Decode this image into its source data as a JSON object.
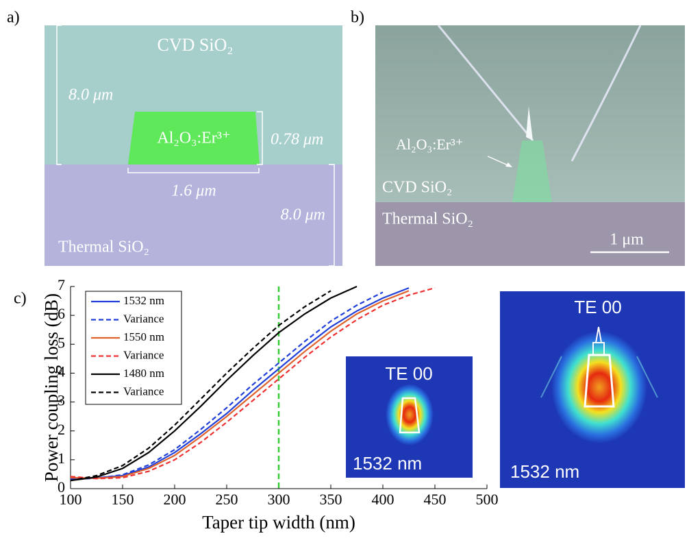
{
  "panel_labels": [
    "a)",
    "b)",
    "c)"
  ],
  "panel_a": {
    "top_layer": "CVD SiO₂",
    "top_thickness": "8.0 μm",
    "core": "Al₂O₃:Er³⁺",
    "core_height": "0.78 μm",
    "core_width": "1.6 μm",
    "bottom_thickness": "8.0 μm",
    "bottom_layer": "Thermal SiO₂"
  },
  "panel_b": {
    "core": "Al₂O₃:Er³⁺",
    "top_layer": "CVD SiO₂",
    "bottom_layer": "Thermal SiO₂",
    "scale_bar": "1 μm"
  },
  "insets": [
    {
      "title": "TE 00",
      "label": "1532 nm"
    },
    {
      "title": "TE 00",
      "label": "1532 nm"
    }
  ],
  "chart_data": {
    "type": "line",
    "xlabel": "Taper tip width (nm)",
    "ylabel": "Power coupling loss (dB)",
    "x": [
      100,
      125,
      150,
      175,
      200,
      225,
      250,
      275,
      300,
      325,
      350,
      375,
      400,
      425,
      450
    ],
    "xlim": [
      100,
      500
    ],
    "xticks": [
      100,
      150,
      200,
      250,
      300,
      350,
      400,
      450,
      500
    ],
    "ylim": [
      0,
      7
    ],
    "yticks": [
      0,
      1,
      2,
      3,
      4,
      5,
      6,
      7
    ],
    "vline": {
      "x": 300,
      "color": "#33cc33"
    },
    "series": [
      {
        "name": "1532 nm",
        "color": "#1f3fd8",
        "dashed": false,
        "values": [
          0.35,
          0.37,
          0.45,
          0.75,
          1.25,
          1.9,
          2.6,
          3.4,
          4.15,
          4.9,
          5.6,
          6.15,
          6.6,
          6.95,
          null
        ]
      },
      {
        "name": "Variance",
        "color": "#1f3fd8",
        "dashed": true,
        "values": [
          0.33,
          0.36,
          0.48,
          0.82,
          1.35,
          2.05,
          2.8,
          3.6,
          4.35,
          5.1,
          5.8,
          6.35,
          6.8,
          null,
          null
        ]
      },
      {
        "name": "1550 nm",
        "color": "#e0622b",
        "dashed": false,
        "values": [
          0.38,
          0.36,
          0.42,
          0.7,
          1.15,
          1.8,
          2.5,
          3.25,
          4.0,
          4.75,
          5.45,
          6.05,
          6.5,
          6.85,
          null
        ]
      },
      {
        "name": "Variance",
        "color": "#f03030",
        "dashed": true,
        "values": [
          0.42,
          0.35,
          0.38,
          0.6,
          1.0,
          1.6,
          2.3,
          3.05,
          3.8,
          4.55,
          5.25,
          5.85,
          6.35,
          6.7,
          6.95
        ]
      },
      {
        "name": "1480 nm",
        "color": "#000000",
        "dashed": false,
        "values": [
          0.28,
          0.4,
          0.7,
          1.25,
          2.0,
          2.85,
          3.75,
          4.6,
          5.4,
          6.05,
          6.6,
          7.0,
          null,
          null,
          null
        ]
      },
      {
        "name": "Variance",
        "color": "#000000",
        "dashed": true,
        "values": [
          0.28,
          0.45,
          0.8,
          1.4,
          2.2,
          3.1,
          4.0,
          4.85,
          5.65,
          6.3,
          6.85,
          null,
          null,
          null,
          null
        ]
      }
    ]
  }
}
